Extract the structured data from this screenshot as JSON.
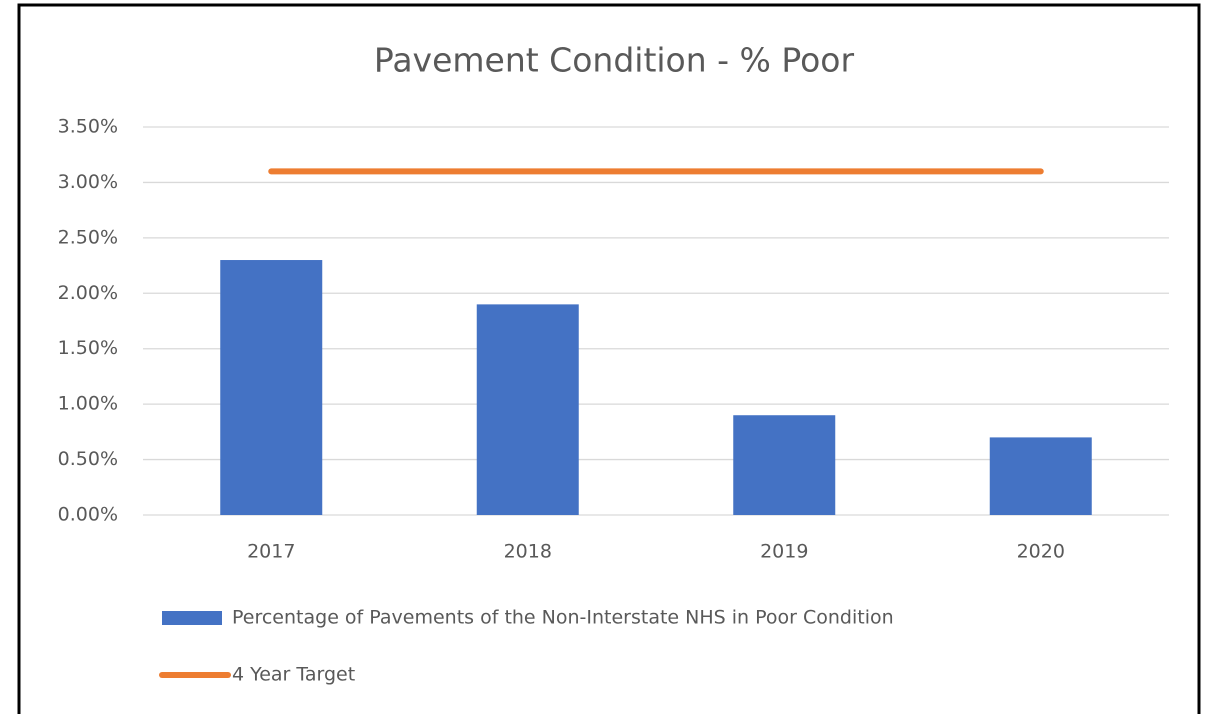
{
  "chart_data": {
    "type": "bar",
    "title": "Pavement Condition - % Poor",
    "categories": [
      "2017",
      "2018",
      "2019",
      "2020"
    ],
    "series": [
      {
        "name": "Percentage of Pavements of the Non-Interstate NHS in Poor Condition",
        "type": "bar",
        "color": "#4472c4",
        "values": [
          2.3,
          1.9,
          0.9,
          0.7
        ]
      },
      {
        "name": "4 Year Target",
        "type": "line",
        "color": "#ed7d31",
        "values": [
          3.1,
          3.1,
          3.1,
          3.1
        ]
      }
    ],
    "ylim": [
      0,
      3.5
    ],
    "yticks": [
      {
        "value": 0,
        "label": "0.00%"
      },
      {
        "value": 0.5,
        "label": "0.50%"
      },
      {
        "value": 1,
        "label": "1.00%"
      },
      {
        "value": 1.5,
        "label": "1.50%"
      },
      {
        "value": 2,
        "label": "2.00%"
      },
      {
        "value": 2.5,
        "label": "2.50%"
      },
      {
        "value": 3,
        "label": "3.00%"
      },
      {
        "value": 3.5,
        "label": "3.50%"
      }
    ],
    "grid": true,
    "legend": "bottom"
  }
}
